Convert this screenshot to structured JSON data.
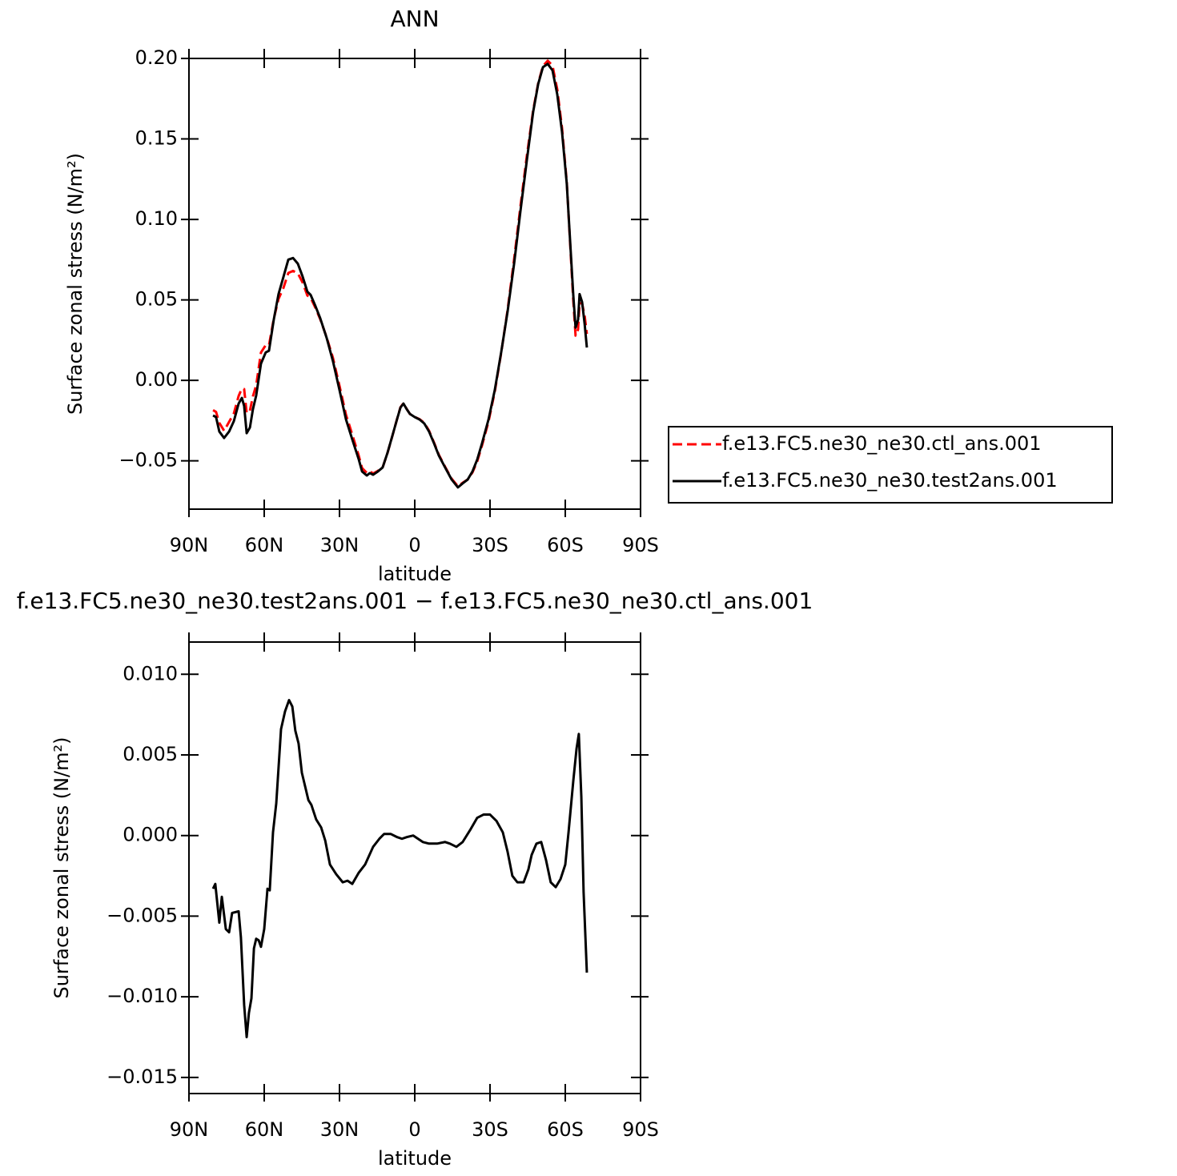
{
  "chart_data": [
    {
      "type": "line",
      "title": "ANN",
      "xlabel": "latitude",
      "ylabel": "Surface zonal stress (N/m²)",
      "xlim": [
        90,
        -90
      ],
      "ylim": [
        -0.08,
        0.2
      ],
      "xticks": [
        {
          "value": 90,
          "label": "90N"
        },
        {
          "value": 60,
          "label": "60N"
        },
        {
          "value": 30,
          "label": "30N"
        },
        0,
        {
          "value": -30,
          "label": "30S"
        },
        {
          "value": -60,
          "label": "60S"
        },
        {
          "value": -90,
          "label": "90S"
        }
      ],
      "yticks": [
        {
          "value": 0.2,
          "label": "0.20"
        },
        {
          "value": 0.15,
          "label": "0.15"
        },
        {
          "value": 0.1,
          "label": "0.10"
        },
        {
          "value": 0.05,
          "label": "0.05"
        },
        {
          "value": 0,
          "label": "0.00"
        },
        {
          "value": -0.05,
          "label": "−0.05"
        }
      ],
      "legend": "right",
      "x": [
        80.4,
        79.2,
        77.9,
        76.0,
        74.0,
        72.1,
        70.2,
        68.9,
        68.0,
        67.0,
        65.7,
        64.5,
        63.2,
        61.3,
        59.4,
        58.1,
        56.2,
        54.3,
        52.3,
        50.4,
        48.5,
        46.6,
        44.7,
        42.8,
        41.5,
        39.6,
        37.7,
        35.1,
        32.6,
        30.0,
        27.4,
        24.9,
        22.3,
        21.0,
        19.1,
        17.9,
        16.6,
        14.7,
        12.8,
        10.9,
        8.9,
        7.0,
        5.7,
        4.5,
        3.2,
        1.9,
        0.0,
        -1.9,
        -3.8,
        -5.7,
        -7.7,
        -9.6,
        -12.1,
        -14.7,
        -17.2,
        -19.1,
        -21.1,
        -23.0,
        -24.9,
        -26.8,
        -29.4,
        -31.9,
        -34.5,
        -37.0,
        -39.6,
        -42.1,
        -44.7,
        -47.2,
        -49.2,
        -51.1,
        -53.0,
        -54.9,
        -56.8,
        -58.7,
        -60.6,
        -61.9,
        -63.2,
        -64.1,
        -65.1,
        -65.7,
        -66.7,
        -67.7,
        -68.6
      ],
      "series": [
        {
          "name": "f.e13.FC5.ne30_ne30.ctl_ans.001",
          "color": "#ff0000",
          "linestyle": "dashed",
          "values": [
            -0.0185,
            -0.0196,
            -0.0264,
            -0.0313,
            -0.0258,
            -0.0205,
            -0.0097,
            -0.005,
            -0.0054,
            -0.0203,
            -0.0188,
            -0.0099,
            -0.003,
            0.0173,
            0.0219,
            0.0218,
            0.0382,
            0.0506,
            0.0576,
            0.0667,
            0.068,
            0.0665,
            0.0608,
            0.0527,
            0.0513,
            0.0451,
            0.0381,
            0.0267,
            0.0139,
            -0.0034,
            -0.0214,
            -0.0337,
            -0.0469,
            -0.0545,
            -0.0575,
            -0.0564,
            -0.0579,
            -0.0562,
            -0.0541,
            -0.0453,
            -0.0344,
            -0.0237,
            -0.0167,
            -0.0142,
            -0.0178,
            -0.0209,
            -0.0227,
            -0.0241,
            -0.0264,
            -0.0313,
            -0.0387,
            -0.0462,
            -0.0537,
            -0.0611,
            -0.0658,
            -0.0636,
            -0.0616,
            -0.0572,
            -0.0503,
            -0.0405,
            -0.0256,
            -0.007,
            0.0175,
            0.0437,
            0.0752,
            0.1077,
            0.1397,
            0.1678,
            0.1846,
            0.1953,
            0.1986,
            0.1956,
            0.1808,
            0.1568,
            0.1231,
            0.0859,
            0.0492,
            0.0278,
            0.0317,
            0.0481,
            0.0477,
            0.0403,
            0.0289
          ]
        },
        {
          "name": "f.e13.FC5.ne30_ne30.test2ans.001",
          "color": "#000000",
          "linestyle": "solid",
          "values": [
            -0.0218,
            -0.0228,
            -0.0318,
            -0.0358,
            -0.0318,
            -0.0253,
            -0.0144,
            -0.0109,
            -0.0159,
            -0.0328,
            -0.0293,
            -0.0179,
            -0.0094,
            0.0104,
            0.0174,
            0.0184,
            0.0377,
            0.0536,
            0.0645,
            0.075,
            0.076,
            0.0725,
            0.0645,
            0.0551,
            0.0531,
            0.0462,
            0.0387,
            0.0263,
            0.0119,
            -0.006,
            -0.0243,
            -0.0367,
            -0.0492,
            -0.0566,
            -0.0591,
            -0.0576,
            -0.0586,
            -0.0566,
            -0.0541,
            -0.0452,
            -0.0343,
            -0.0238,
            -0.0169,
            -0.0144,
            -0.0179,
            -0.0209,
            -0.0228,
            -0.0243,
            -0.0268,
            -0.0318,
            -0.0392,
            -0.0467,
            -0.0541,
            -0.0616,
            -0.0665,
            -0.064,
            -0.0616,
            -0.0566,
            -0.0492,
            -0.0392,
            -0.0243,
            -0.006,
            0.0179,
            0.0427,
            0.0725,
            0.1048,
            0.137,
            0.1668,
            0.1841,
            0.1946,
            0.1966,
            0.1926,
            0.1777,
            0.1544,
            0.1221,
            0.0874,
            0.0526,
            0.0328,
            0.0377,
            0.0536,
            0.0487,
            0.0353,
            0.0204
          ]
        }
      ]
    },
    {
      "type": "line",
      "title": "f.e13.FC5.ne30_ne30.test2ans.001 − f.e13.FC5.ne30_ne30.ctl_ans.001",
      "xlabel": "latitude",
      "ylabel": "Surface zonal stress (N/m²)",
      "xlim": [
        90,
        -90
      ],
      "ylim": [
        -0.016,
        0.012
      ],
      "xticks": [
        {
          "value": 90,
          "label": "90N"
        },
        {
          "value": 60,
          "label": "60N"
        },
        {
          "value": 30,
          "label": "30N"
        },
        0,
        {
          "value": -30,
          "label": "30S"
        },
        {
          "value": -60,
          "label": "60S"
        },
        {
          "value": -90,
          "label": "90S"
        }
      ],
      "yticks": [
        {
          "value": 0.01,
          "label": "0.010"
        },
        {
          "value": 0.005,
          "label": "0.005"
        },
        {
          "value": 0,
          "label": "0.000"
        },
        {
          "value": -0.005,
          "label": "−0.005"
        },
        {
          "value": -0.01,
          "label": "−0.010"
        },
        {
          "value": -0.015,
          "label": "−0.015"
        }
      ],
      "color": "#000000",
      "linestyle": "solid",
      "x": [
        80.4,
        79.5,
        77.9,
        76.9,
        75.3,
        74.0,
        72.8,
        70.2,
        69.3,
        68.0,
        67.0,
        66.1,
        65.1,
        64.1,
        63.2,
        62.2,
        61.3,
        60.0,
        58.7,
        57.8,
        56.5,
        55.2,
        53.3,
        51.7,
        50.1,
        48.8,
        47.6,
        46.3,
        45.0,
        42.4,
        41.2,
        39.3,
        37.3,
        35.7,
        33.8,
        31.3,
        28.7,
        26.8,
        24.9,
        22.3,
        19.8,
        16.6,
        14.1,
        12.2,
        9.6,
        7.0,
        5.1,
        3.2,
        0.6,
        -1.3,
        -3.2,
        -5.7,
        -8.9,
        -12.1,
        -14.0,
        -16.6,
        -19.1,
        -22.3,
        -24.9,
        -27.4,
        -30.0,
        -32.6,
        -35.1,
        -37.0,
        -38.9,
        -40.9,
        -43.4,
        -45.3,
        -46.6,
        -48.5,
        -50.4,
        -52.3,
        -54.2,
        -56.2,
        -58.1,
        -60.0,
        -61.3,
        -63.2,
        -64.5,
        -65.4,
        -66.4,
        -67.3,
        -68.6
      ],
      "values": [
        -0.0033,
        -0.003,
        -0.0054,
        -0.0038,
        -0.0058,
        -0.006,
        -0.0048,
        -0.0047,
        -0.0063,
        -0.0105,
        -0.0125,
        -0.011,
        -0.0101,
        -0.007,
        -0.0064,
        -0.0065,
        -0.0069,
        -0.0058,
        -0.0033,
        -0.0034,
        0.0002,
        0.002,
        0.0066,
        0.0077,
        0.0084,
        0.008,
        0.0065,
        0.0057,
        0.0039,
        0.0022,
        0.0019,
        0.001,
        0.0005,
        -0.0003,
        -0.0018,
        -0.0024,
        -0.0029,
        -0.0028,
        -0.003,
        -0.0023,
        -0.0018,
        -0.0007,
        -0.0002,
        0.0001,
        0.0001,
        -0.0001,
        -0.0002,
        -0.0001,
        0.0,
        -0.0002,
        -0.0004,
        -0.0005,
        -0.0005,
        -0.0004,
        -0.0005,
        -0.0007,
        -0.0004,
        0.0004,
        0.0011,
        0.0013,
        0.0013,
        0.0009,
        0.0002,
        -0.001,
        -0.0025,
        -0.0029,
        -0.0029,
        -0.0021,
        -0.0012,
        -0.0005,
        -0.0004,
        -0.0015,
        -0.0029,
        -0.0032,
        -0.0027,
        -0.0018,
        0.0002,
        0.0034,
        0.0054,
        0.0063,
        0.0024,
        -0.0035,
        -0.0085
      ]
    }
  ]
}
